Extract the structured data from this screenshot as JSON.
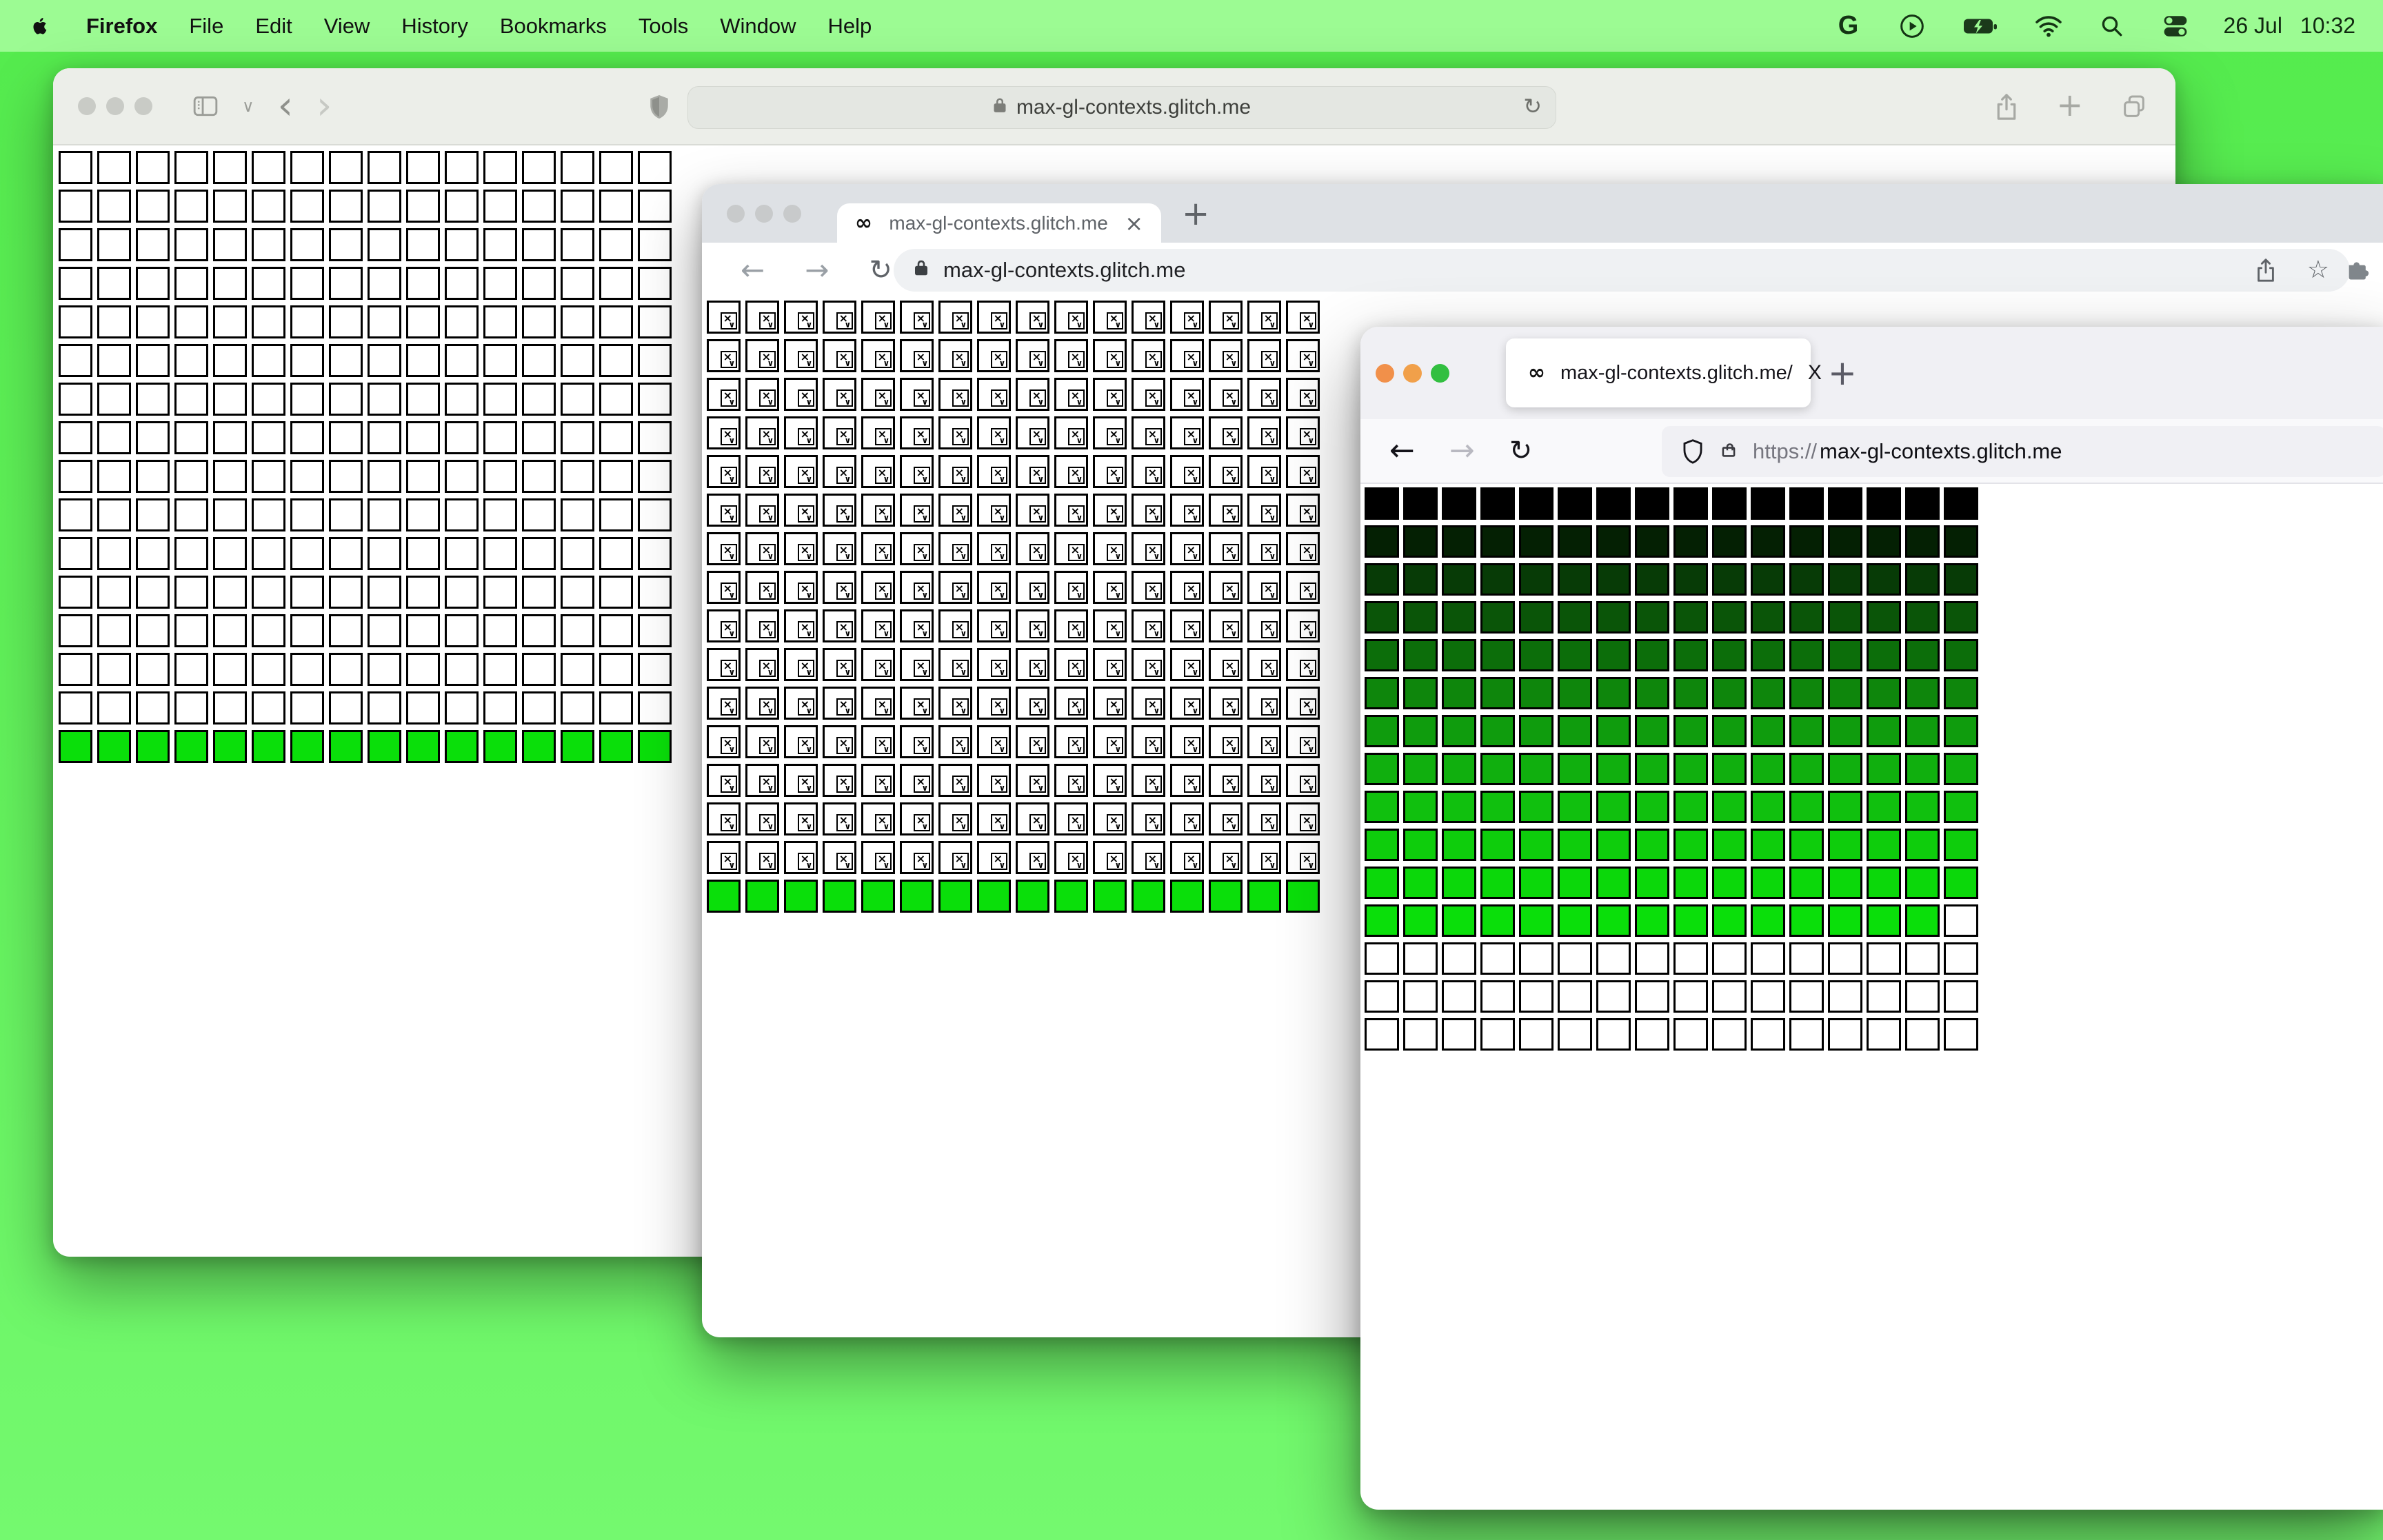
{
  "desktop": {
    "background_top": "#54EB4D",
    "background_bottom": "#74F96F",
    "menubar_bg": "#9CFB93",
    "canvas_green": "#0ADF0A"
  },
  "menu_bar": {
    "app_name": "Firefox",
    "items": [
      "Firefox",
      "File",
      "Edit",
      "View",
      "History",
      "Bookmarks",
      "Tools",
      "Window",
      "Help"
    ],
    "status_icons": [
      "google-icon",
      "play-circle-icon",
      "battery-charging-icon",
      "wifi-icon",
      "search-icon",
      "control-center-icon"
    ],
    "google_letter": "G",
    "date": "26 Jul",
    "time": "10:32"
  },
  "glyphs": {
    "infinity": "∞",
    "close": "×",
    "plus": "+",
    "back": "←",
    "forward": "→",
    "reload": "↻",
    "star": "☆",
    "back_chevron": "‹",
    "forward_chevron": "›",
    "chevron_down": "∨"
  },
  "safari_window": {
    "address": "max-gl-contexts.glitch.me"
  },
  "chrome_window": {
    "tab_title": "max-gl-contexts.glitch.me",
    "address": "max-gl-contexts.glitch.me"
  },
  "firefox_window": {
    "tab_title": "max-gl-contexts.glitch.me/",
    "url_scheme": "https://",
    "url_host": "max-gl-contexts.glitch.me"
  },
  "grids": {
    "safari-grid": {
      "cols": 16,
      "rows": 16,
      "default_fill": "#FFFFFF",
      "row_colors": {
        "16": "#0ADF0A"
      }
    },
    "chrome-grid": {
      "cols": 16,
      "rows": 16,
      "default_fill": "#FFFFFF",
      "row_colors": {
        "16": "#0ADF0A"
      },
      "broken_icon_rows": 15
    },
    "firefox-grid": {
      "cols": 16,
      "rows": 15,
      "default_fill": "#FFFFFF",
      "row_colors": {
        "1": "#000000",
        "2": "#042003",
        "3": "#073B06",
        "4": "#0A5508",
        "5": "#0C6E0A",
        "6": "#0E860C",
        "7": "#0F9C0D",
        "8": "#10AF0E",
        "9": "#10C00E",
        "10": "#0ECD0C",
        "11": "#0BD80A",
        "12": "#0ADF0A"
      },
      "white_cells": [
        {
          "row": 12,
          "col": 16
        }
      ]
    }
  }
}
